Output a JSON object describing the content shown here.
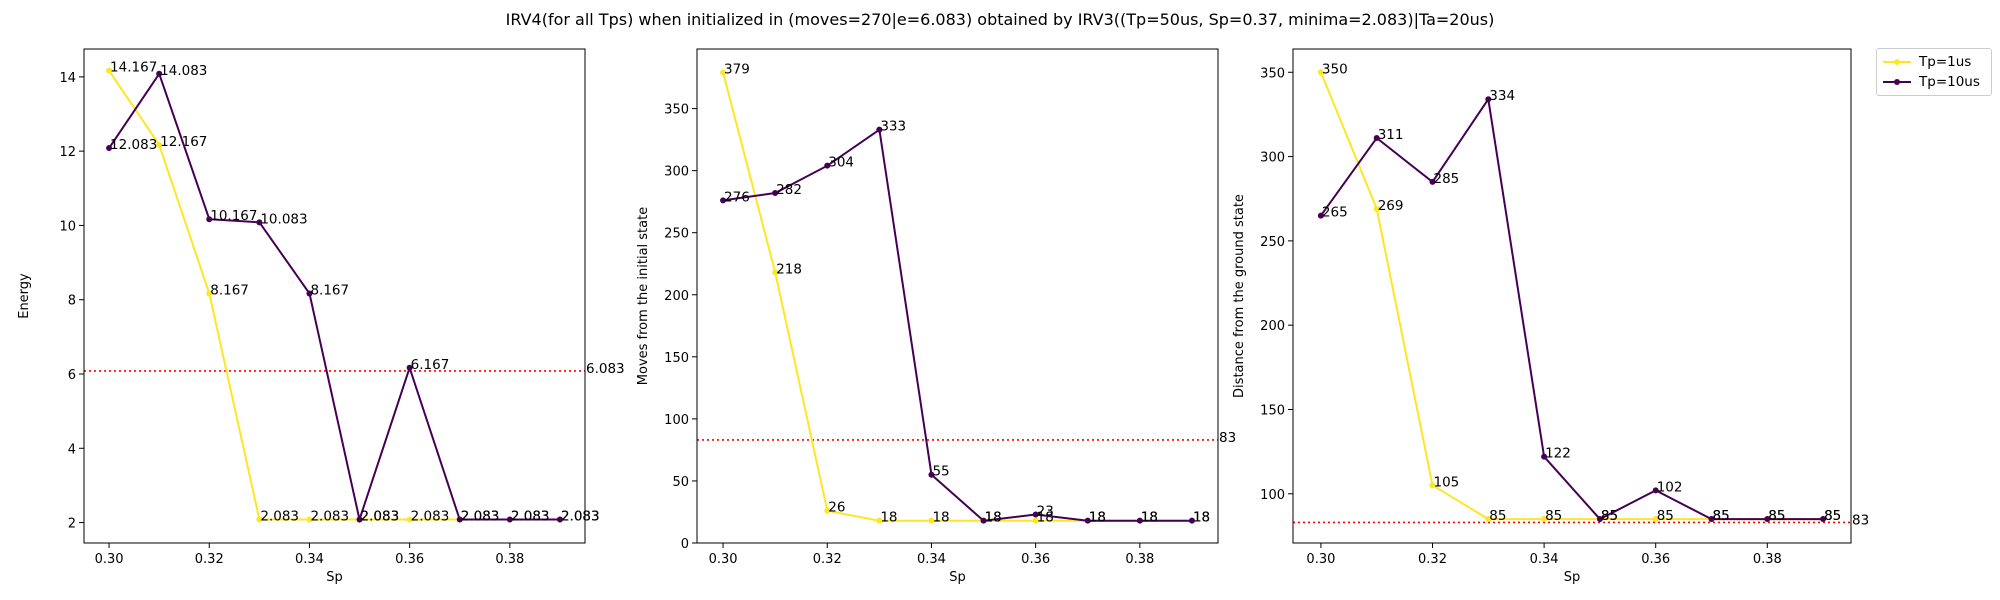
{
  "figure_title": "IRV4(for all Tps) when initialized in (moves=270|e=6.083) obtained by IRV3((Tp=50us, Sp=0.37, minima=2.083)|Ta=20us)",
  "colors": {
    "tp1": "#fde725",
    "tp10": "#440154",
    "ref": "#ff0000"
  },
  "legend": {
    "placement": "outside-top-right",
    "entries": [
      {
        "name": "Tp=1us",
        "color": "#fde725"
      },
      {
        "name": "Tp=10us",
        "color": "#440154"
      }
    ]
  },
  "chart_data": [
    {
      "type": "line",
      "title": "",
      "xlabel": "Sp",
      "ylabel": "Energy",
      "xlim": [
        0.295,
        0.395
      ],
      "ylim": [
        1.45,
        14.75
      ],
      "xticks": [
        0.3,
        0.32,
        0.34,
        0.36,
        0.38
      ],
      "xtick_labels": [
        "0.30",
        "0.32",
        "0.34",
        "0.36",
        "0.38"
      ],
      "yticks": [
        2,
        4,
        6,
        8,
        10,
        12,
        14
      ],
      "ytick_labels": [
        "2",
        "4",
        "6",
        "8",
        "10",
        "12",
        "14"
      ],
      "x": [
        0.3,
        0.31,
        0.32,
        0.33,
        0.34,
        0.35,
        0.36,
        0.37,
        0.38,
        0.39
      ],
      "series": [
        {
          "name": "Tp=1us",
          "color": "#fde725",
          "values": [
            14.167,
            12.167,
            8.167,
            2.083,
            2.083,
            2.083,
            2.083,
            2.083,
            2.083,
            2.083
          ],
          "labels": [
            "14.167",
            "12.167",
            "8.167",
            "2.083",
            "2.083",
            "2.083",
            "2.083",
            "2.083",
            "2.083",
            "2.083"
          ]
        },
        {
          "name": "Tp=10us",
          "color": "#440154",
          "values": [
            12.083,
            14.083,
            10.167,
            10.083,
            8.167,
            2.083,
            6.167,
            2.083,
            2.083,
            2.083
          ],
          "labels": [
            "12.083",
            "14.083",
            "10.167",
            "10.083",
            "8.167",
            "2.083",
            "6.167",
            "2.083",
            "2.083",
            "2.083"
          ]
        }
      ],
      "reference_line": {
        "value": 6.083,
        "label": "6.083",
        "style": "dotted",
        "color": "#ff0000"
      }
    },
    {
      "type": "line",
      "title": "",
      "xlabel": "Sp",
      "ylabel": "Moves from the initial state",
      "xlim": [
        0.295,
        0.395
      ],
      "ylim": [
        0,
        398
      ],
      "xticks": [
        0.3,
        0.32,
        0.34,
        0.36,
        0.38
      ],
      "xtick_labels": [
        "0.30",
        "0.32",
        "0.34",
        "0.36",
        "0.38"
      ],
      "yticks": [
        0,
        50,
        100,
        150,
        200,
        250,
        300,
        350
      ],
      "ytick_labels": [
        "0",
        "50",
        "100",
        "150",
        "200",
        "250",
        "300",
        "350"
      ],
      "x": [
        0.3,
        0.31,
        0.32,
        0.33,
        0.34,
        0.35,
        0.36,
        0.37,
        0.38,
        0.39
      ],
      "series": [
        {
          "name": "Tp=1us",
          "color": "#fde725",
          "values": [
            379,
            218,
            26,
            18,
            18,
            18,
            18,
            18,
            18,
            18
          ],
          "labels": [
            "379",
            "218",
            "26",
            "18",
            "18",
            "18",
            "18",
            "18",
            "18",
            "18"
          ]
        },
        {
          "name": "Tp=10us",
          "color": "#440154",
          "values": [
            276,
            282,
            304,
            333,
            55,
            18,
            23,
            18,
            18,
            18
          ],
          "labels": [
            "276",
            "282",
            "304",
            "333",
            "55",
            "18",
            "23",
            "18",
            "18",
            "18"
          ]
        }
      ],
      "reference_line": {
        "value": 83,
        "label": "83",
        "style": "dotted",
        "color": "#ff0000"
      }
    },
    {
      "type": "line",
      "title": "",
      "xlabel": "Sp",
      "ylabel": "Distance from the ground state",
      "xlim": [
        0.295,
        0.395
      ],
      "ylim": [
        70.8,
        363.8
      ],
      "xticks": [
        0.3,
        0.32,
        0.34,
        0.36,
        0.38
      ],
      "xtick_labels": [
        "0.30",
        "0.32",
        "0.34",
        "0.36",
        "0.38"
      ],
      "yticks": [
        100,
        150,
        200,
        250,
        300,
        350
      ],
      "ytick_labels": [
        "100",
        "150",
        "200",
        "250",
        "300",
        "350"
      ],
      "x": [
        0.3,
        0.31,
        0.32,
        0.33,
        0.34,
        0.35,
        0.36,
        0.37,
        0.38,
        0.39
      ],
      "series": [
        {
          "name": "Tp=1us",
          "color": "#fde725",
          "values": [
            350,
            269,
            105,
            85,
            85,
            85,
            85,
            85,
            85,
            85
          ],
          "labels": [
            "350",
            "269",
            "105",
            "85",
            "85",
            "85",
            "85",
            "85",
            "85",
            "85"
          ]
        },
        {
          "name": "Tp=10us",
          "color": "#440154",
          "values": [
            265,
            311,
            285,
            334,
            122,
            85,
            102,
            85,
            85,
            85
          ],
          "labels": [
            "265",
            "311",
            "285",
            "334",
            "122",
            "85",
            "102",
            "85",
            "85",
            "85"
          ]
        }
      ],
      "reference_line": {
        "value": 83,
        "label": "83",
        "style": "dotted",
        "color": "#ff0000"
      }
    }
  ]
}
